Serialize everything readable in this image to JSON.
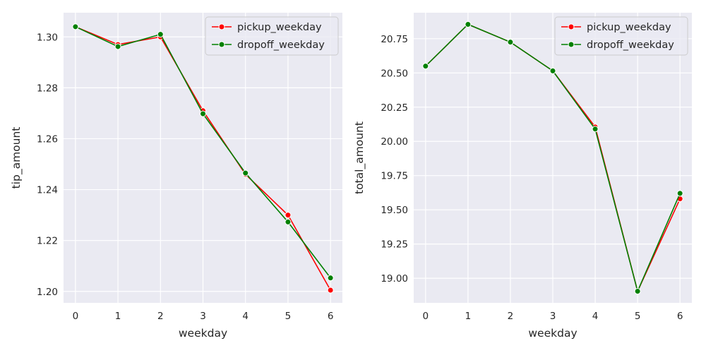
{
  "chart_data": [
    {
      "type": "line",
      "xlabel": "weekday",
      "ylabel": "tip_amount",
      "x": [
        0,
        1,
        2,
        3,
        4,
        5,
        6
      ],
      "xticks": [
        "0",
        "1",
        "2",
        "3",
        "4",
        "5",
        "6"
      ],
      "yticks": [
        "1.20",
        "1.22",
        "1.24",
        "1.26",
        "1.28",
        "1.30"
      ],
      "ylim": [
        1.1955,
        1.3095
      ],
      "xlim": [
        -0.28,
        6.28
      ],
      "grid": true,
      "legend_position": "top-right",
      "series": [
        {
          "name": "pickup_weekday",
          "color": "#ff0000",
          "values": [
            1.304,
            1.297,
            1.3,
            1.271,
            1.246,
            1.23,
            1.2005
          ]
        },
        {
          "name": "dropoff_weekday",
          "color": "#008000",
          "values": [
            1.304,
            1.2962,
            1.301,
            1.2698,
            1.2465,
            1.2273,
            1.2053
          ]
        }
      ]
    },
    {
      "type": "line",
      "xlabel": "weekday",
      "ylabel": "total_amount",
      "x": [
        0,
        1,
        2,
        3,
        4,
        5,
        6
      ],
      "xticks": [
        "0",
        "1",
        "2",
        "3",
        "4",
        "5",
        "6"
      ],
      "yticks": [
        "19.00",
        "19.25",
        "19.50",
        "19.75",
        "20.00",
        "20.25",
        "20.50",
        "20.75"
      ],
      "ylim": [
        18.82,
        20.94
      ],
      "xlim": [
        -0.28,
        6.28
      ],
      "grid": true,
      "legend_position": "top-right",
      "series": [
        {
          "name": "pickup_weekday",
          "color": "#ff0000",
          "values": [
            20.55,
            20.855,
            20.725,
            20.515,
            20.105,
            18.905,
            19.58
          ]
        },
        {
          "name": "dropoff_weekday",
          "color": "#008000",
          "values": [
            20.55,
            20.855,
            20.725,
            20.515,
            20.09,
            18.905,
            19.62
          ]
        }
      ]
    }
  ]
}
